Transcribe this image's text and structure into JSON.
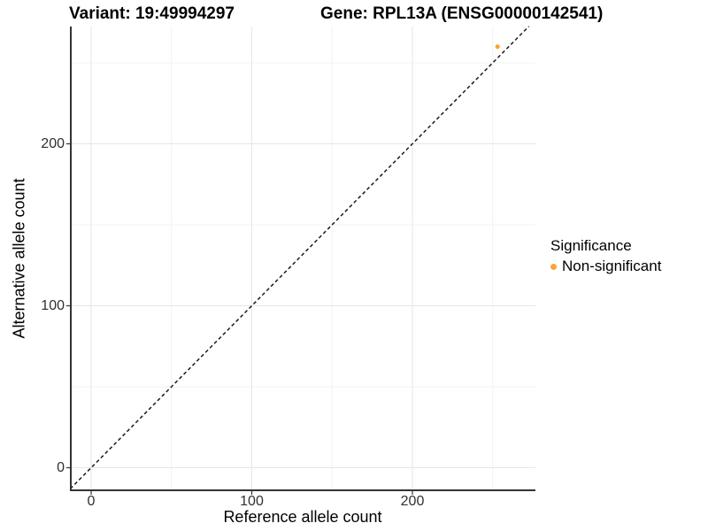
{
  "header": {
    "variant_title": "Variant: 19:49994297",
    "gene_title": "Gene: RPL13A (ENSG00000142541)"
  },
  "chart_data": {
    "type": "scatter",
    "xlabel": "Reference allele count",
    "ylabel": "Alternative allele count",
    "xlim": [
      -13,
      277
    ],
    "ylim": [
      -13,
      272.5
    ],
    "x_ticks": [
      0,
      100,
      200
    ],
    "y_ticks": [
      0,
      100,
      200
    ],
    "x_minor_ticks": [
      50,
      150,
      250
    ],
    "y_minor_ticks": [
      50,
      150,
      250
    ],
    "grid": true,
    "points": [
      {
        "x": 253,
        "y": 260,
        "series": "Non-significant",
        "color": "#FAA43C"
      }
    ],
    "reference_line": {
      "slope": 1,
      "intercept": 0,
      "style": "dashed",
      "color": "#1a1a1a"
    },
    "legend": {
      "title": "Significance",
      "position": "right",
      "items": [
        {
          "label": "Non-significant",
          "color": "#FAA43C",
          "marker": "circle"
        }
      ]
    },
    "colors": {
      "major_grid": "#E6E6E6",
      "minor_grid": "#F2F2F2",
      "axis": "#333333",
      "panel_background": "#FFFFFF"
    }
  }
}
